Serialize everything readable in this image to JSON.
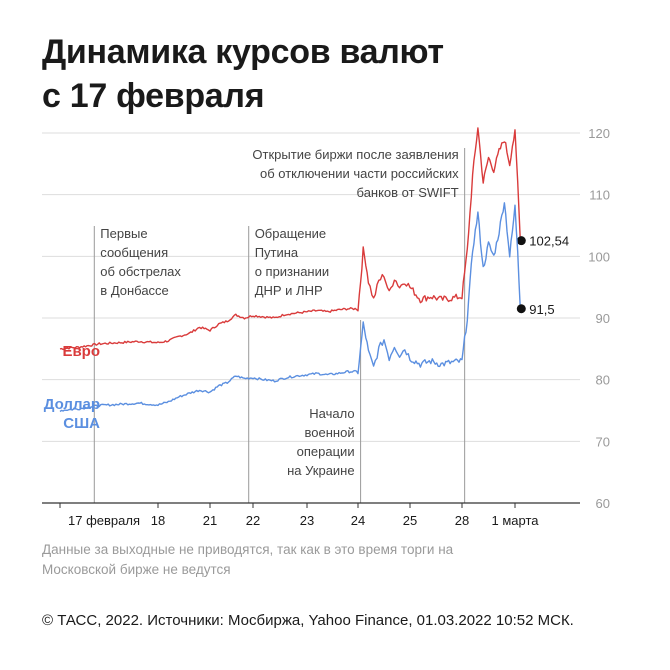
{
  "title": {
    "line1": "Динамика курсов валют",
    "line2": "с 17 февраля"
  },
  "note": "Данные за выходные не приводятся, так как в это время торги на Московской бирже не ведутся",
  "footer": "© ТАСС, 2022. Источники: Мосбиржа, Yahoo Finance, 01.03.2022 10:52 МСК.",
  "colors": {
    "euro": "#d93b3b",
    "usd": "#5b8fe0",
    "grid": "#dddddd",
    "axis": "#333333",
    "event": "#999999",
    "ytick": "#9a9a9a"
  },
  "chart_data": {
    "type": "line",
    "title": "Динамика курсов валют с 17 февраля",
    "ylim": [
      60,
      120
    ],
    "yticks": [
      60,
      70,
      80,
      90,
      100,
      110,
      120
    ],
    "x_categories": [
      "17 февраля",
      "18",
      "21",
      "22",
      "23",
      "24",
      "25",
      "28",
      "1 марта"
    ],
    "x_tick_labels": [
      "17 февраля",
      "18",
      "21",
      "22",
      "23",
      "24",
      "25",
      "28",
      "1 марта"
    ],
    "series": [
      {
        "name": "Евро",
        "key": "euro",
        "x": [
          0,
          0.2,
          0.4,
          0.6,
          0.8,
          1.0,
          1.2,
          1.4,
          1.6,
          1.8,
          2.0,
          2.2,
          2.4,
          2.6,
          2.8,
          3.0,
          3.2,
          3.4,
          3.6,
          3.8,
          4.0,
          4.2,
          4.4,
          4.6,
          4.8,
          5.0,
          5.05,
          5.1,
          5.15,
          5.2,
          5.3,
          5.4,
          5.5,
          5.6,
          5.7,
          5.8,
          5.9,
          6.0,
          6.2,
          6.4,
          6.6,
          6.8,
          7.0,
          7.1,
          7.2,
          7.3,
          7.4,
          7.5,
          7.6,
          7.7,
          7.8,
          7.9,
          7.95,
          8.0,
          8.05,
          8.1
        ],
        "y": [
          85,
          85.3,
          85.8,
          86,
          86.2,
          86.0,
          86.3,
          87.0,
          87.5,
          88.5,
          88.0,
          89.0,
          89.5,
          90.5,
          90.0,
          90.4,
          90.2,
          90.0,
          90.6,
          90.8,
          91.0,
          91.2,
          91.0,
          91.3,
          91.5,
          91.5,
          96.0,
          101.0,
          99.0,
          96.0,
          93.0,
          96.0,
          97.0,
          94.0,
          96.5,
          95.0,
          96.0,
          95.0,
          93.0,
          93.5,
          93.0,
          93.2,
          93.5,
          101.0,
          113.0,
          121.0,
          112.0,
          116.0,
          114.0,
          117.0,
          119.0,
          115.0,
          118.0,
          120.0,
          112.0,
          102.54
        ]
      },
      {
        "name": "Доллар США",
        "key": "usd",
        "x": [
          0,
          0.2,
          0.4,
          0.6,
          0.8,
          1.0,
          1.2,
          1.4,
          1.6,
          1.8,
          2.0,
          2.2,
          2.4,
          2.6,
          2.8,
          3.0,
          3.2,
          3.4,
          3.6,
          3.8,
          4.0,
          4.2,
          4.4,
          4.6,
          4.8,
          5.0,
          5.05,
          5.1,
          5.15,
          5.2,
          5.3,
          5.4,
          5.5,
          5.6,
          5.7,
          5.8,
          5.9,
          6.0,
          6.2,
          6.4,
          6.6,
          6.8,
          7.0,
          7.1,
          7.2,
          7.3,
          7.4,
          7.5,
          7.6,
          7.7,
          7.8,
          7.9,
          7.95,
          8.0,
          8.05,
          8.1
        ],
        "y": [
          75,
          75.3,
          75.8,
          76,
          76.2,
          75.9,
          76.4,
          77.2,
          77.8,
          78.3,
          78.0,
          79.0,
          79.5,
          80.6,
          80.2,
          80.3,
          80.0,
          79.8,
          80.3,
          80.6,
          80.8,
          81.0,
          80.8,
          81.0,
          81.3,
          81.3,
          85.0,
          89.0,
          87.0,
          84.5,
          82.0,
          85.0,
          86.5,
          83.5,
          85.5,
          84.0,
          85.0,
          83.5,
          82.5,
          83.0,
          82.5,
          82.8,
          83.0,
          90.0,
          101.0,
          107.0,
          98.0,
          102.0,
          100.0,
          104.0,
          109.0,
          100.0,
          104.0,
          108.0,
          101.0,
          91.5
        ]
      }
    ],
    "series_labels": {
      "euro": "Евро",
      "usd_line1": "Доллар",
      "usd_line2": "США"
    },
    "end_values": {
      "euro": "102,54",
      "usd": "91,5"
    },
    "events": [
      {
        "x": 0.35,
        "lines": [
          "Первые",
          "сообщения",
          "об обстрелах",
          "в Донбассе"
        ],
        "label_pos": "top"
      },
      {
        "x": 2.9,
        "lines": [
          "Обращение",
          "Путина",
          "о признании",
          "ДНР и ЛНР"
        ],
        "label_pos": "top"
      },
      {
        "x": 5.05,
        "lines": [
          "Начало",
          "военной",
          "операции",
          "на Украине"
        ],
        "label_pos": "bottom"
      },
      {
        "x": 7.05,
        "lines": [
          "Открытие биржи после заявления",
          "об отключении части российских",
          "банков от SWIFT"
        ],
        "label_pos": "top-left"
      }
    ],
    "grid": true
  }
}
